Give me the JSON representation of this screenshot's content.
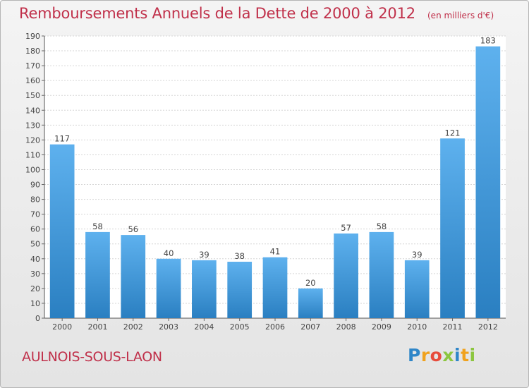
{
  "header": {
    "title": "Remboursements Annuels de la Dette de 2000 à 2012",
    "subtitle": "(en milliers d'€)"
  },
  "footer": {
    "town": "AULNOIS-SOUS-LAON",
    "logo": "Proxiti",
    "logo_letters": [
      {
        "ch": "P",
        "color": "#2f86c8"
      },
      {
        "ch": "r",
        "color": "#f0a21e"
      },
      {
        "ch": "o",
        "color": "#e74c3c"
      },
      {
        "ch": "x",
        "color": "#8cc63f"
      },
      {
        "ch": "i",
        "color": "#2f86c8"
      },
      {
        "ch": "t",
        "color": "#f0a21e"
      },
      {
        "ch": "i",
        "color": "#8cc63f"
      }
    ]
  },
  "colors": {
    "title": "#c0304a",
    "bar_top": "#5eb1ee",
    "bar_bottom": "#2a7fc1",
    "grid": "#d6d6d6",
    "plot_bg": "#ffffff"
  },
  "chart_data": {
    "type": "bar",
    "title": "Remboursements Annuels de la Dette de 2000 à 2012",
    "subtitle": "(en milliers d'€)",
    "categories": [
      "2000",
      "2001",
      "2002",
      "2003",
      "2004",
      "2005",
      "2006",
      "2007",
      "2008",
      "2009",
      "2010",
      "2011",
      "2012"
    ],
    "values": [
      117,
      58,
      56,
      40,
      39,
      38,
      41,
      20,
      57,
      58,
      39,
      121,
      183
    ],
    "ylim": [
      0,
      190
    ],
    "ytick_step": 10,
    "grid": true,
    "value_labels": true
  }
}
